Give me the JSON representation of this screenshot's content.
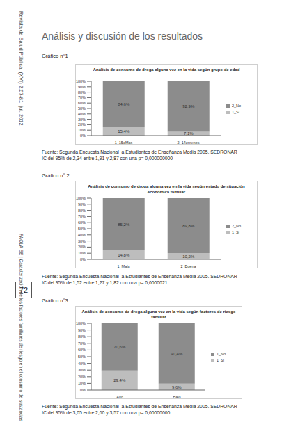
{
  "page": {
    "journal": "Revista de Salud Pública, (XVI) 2:67-81, jul. 2012",
    "page_number": "72",
    "running_title": "PAOLA SE  |  Caracterización de los factores familiares de riesgo en el consumo de sustancias",
    "section_title": "Análisis y discusión de los resultados",
    "figures": [
      {
        "label": "Gráfico n°1",
        "source": "Fuente: Segunda Encuesta Nacional  a Estudiantes de Enseñanza Media 2005. SEDRONAR",
        "ci": "IC del 95% de 2,34 entre 1,91 y 2,87 con una p= 0,000000000"
      },
      {
        "label": "Gráfico n° 2",
        "source": "Fuente: Segunda Encuesta Nacional  a Estudiantes de Enseñanza Media 2005. SEDRONAR",
        "ci": "IC del 95% de 1,52 entre 1,27 y 1,82 con una p= 0,0000021"
      },
      {
        "label": "Gráfico n°3",
        "source": "Fuente: Segunda Encuesta Nacional  a Estudiantes de Enseñanza Media 2005. SEDRONAR",
        "ci": "IC del 95% de 3,05 entre 2,60 y 3,57 con una p= 0,00000000"
      }
    ]
  },
  "chart_data": [
    {
      "type": "bar",
      "title": "Análisis de consumo de droga alguna vez en la vida según grupo de edad",
      "categories": [
        "1_15oMas",
        "2_14omenos"
      ],
      "series": [
        {
          "name": "1_Si",
          "color": "#bdbdbd",
          "values": [
            15.4,
            7.1
          ],
          "value_labels": [
            "15,4%",
            "7,1%"
          ]
        },
        {
          "name": "2_No",
          "color": "#8c8c8c",
          "values": [
            84.6,
            92.9
          ],
          "value_labels": [
            "84,6%",
            "92,9%"
          ]
        }
      ],
      "stacked": true,
      "data_labels": true,
      "grid": false,
      "legend": "right",
      "ylim": [
        0,
        100
      ],
      "yticks": [
        {
          "value": 0,
          "label": "0%"
        },
        {
          "value": 10,
          "label": "10%"
        },
        {
          "value": 20,
          "label": "20%"
        },
        {
          "value": 30,
          "label": "30%"
        },
        {
          "value": 40,
          "label": "40%"
        },
        {
          "value": 50,
          "label": "50%"
        },
        {
          "value": 60,
          "label": "60%"
        },
        {
          "value": 70,
          "label": "70%"
        },
        {
          "value": 80,
          "label": "80%"
        },
        {
          "value": 90,
          "label": "90%"
        },
        {
          "value": 100,
          "label": "100%"
        }
      ]
    },
    {
      "type": "bar",
      "title": "Análisis de consumo de droga alguna vez en la vida según estado de situación económica familiar",
      "categories": [
        "1_Mala",
        "2_Buena"
      ],
      "series": [
        {
          "name": "1_Si",
          "color": "#bdbdbd",
          "values": [
            14.8,
            10.2
          ],
          "value_labels": [
            "14,8%",
            "10,2%"
          ]
        },
        {
          "name": "2_No",
          "color": "#8c8c8c",
          "values": [
            85.2,
            89.8
          ],
          "value_labels": [
            "85,2%",
            "89,8%"
          ]
        }
      ],
      "stacked": true,
      "data_labels": true,
      "grid": false,
      "legend": "right",
      "ylim": [
        0,
        100
      ],
      "yticks": [
        {
          "value": 0,
          "label": "0%"
        },
        {
          "value": 10,
          "label": "10%"
        },
        {
          "value": 20,
          "label": "20%"
        },
        {
          "value": 30,
          "label": "30%"
        },
        {
          "value": 40,
          "label": "40%"
        },
        {
          "value": 50,
          "label": "50%"
        },
        {
          "value": 60,
          "label": "60%"
        },
        {
          "value": 70,
          "label": "70%"
        },
        {
          "value": 80,
          "label": "80%"
        },
        {
          "value": 90,
          "label": "90%"
        },
        {
          "value": 100,
          "label": "100%"
        }
      ]
    },
    {
      "type": "bar",
      "title": "Análisis de consumo de droga alguna vez en la vida según factores de riesgo familiar",
      "categories": [
        "Alto",
        "Bajo"
      ],
      "series": [
        {
          "name": "1_Si",
          "color": "#bdbdbd",
          "values": [
            29.4,
            9.6
          ],
          "value_labels": [
            "29,4%",
            "9,6%"
          ]
        },
        {
          "name": "1_No",
          "color": "#8c8c8c",
          "values": [
            70.6,
            90.4
          ],
          "value_labels": [
            "70,6%",
            "90,4%"
          ]
        }
      ],
      "stacked": true,
      "data_labels": true,
      "grid": false,
      "legend": "right",
      "ylim": [
        0,
        100
      ],
      "yticks": [
        {
          "value": 0,
          "label": "0%"
        },
        {
          "value": 10,
          "label": "10%"
        },
        {
          "value": 20,
          "label": "20%"
        },
        {
          "value": 30,
          "label": "30%"
        },
        {
          "value": 40,
          "label": "40%"
        },
        {
          "value": 50,
          "label": "50%"
        },
        {
          "value": 60,
          "label": "60%"
        },
        {
          "value": 70,
          "label": "70%"
        },
        {
          "value": 80,
          "label": "80%"
        },
        {
          "value": 90,
          "label": "90%"
        },
        {
          "value": 100,
          "label": "100%"
        }
      ]
    }
  ]
}
